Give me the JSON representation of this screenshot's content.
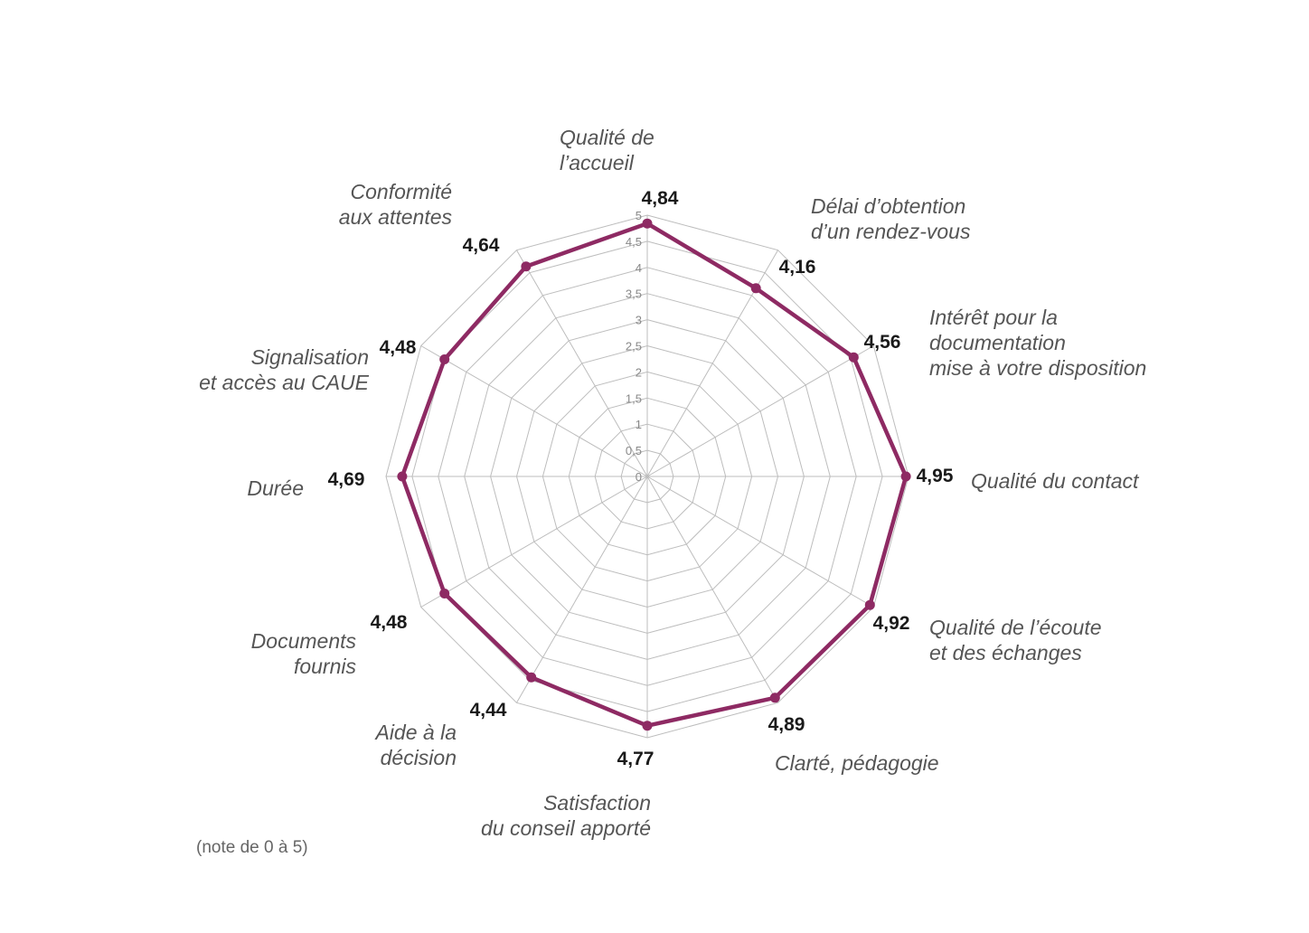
{
  "chart_data": {
    "type": "radar",
    "rlim": [
      0,
      5
    ],
    "ticks": [
      "0",
      "0,5",
      "1",
      "1,5",
      "2",
      "2,5",
      "3",
      "3,5",
      "4",
      "4,5",
      "5"
    ],
    "grid": true,
    "series": [
      {
        "color": "#8e2a63",
        "points": [
          {
            "label": [
              "Qualité de",
              "l’accueil"
            ],
            "value": 4.84,
            "value_label": "4,84"
          },
          {
            "label": [
              "Délai d’obtention",
              "d’un rendez-vous"
            ],
            "value": 4.16,
            "value_label": "4,16"
          },
          {
            "label": [
              "Intérêt pour la",
              "documentation",
              "mise à votre disposition"
            ],
            "value": 4.56,
            "value_label": "4,56"
          },
          {
            "label": [
              "Qualité du contact"
            ],
            "value": 4.95,
            "value_label": "4,95"
          },
          {
            "label": [
              "Qualité de l’écoute",
              "et des échanges"
            ],
            "value": 4.92,
            "value_label": "4,92"
          },
          {
            "label": [
              "Clarté, pédagogie"
            ],
            "value": 4.89,
            "value_label": "4,89"
          },
          {
            "label": [
              "Satisfaction",
              "du conseil apporté"
            ],
            "value": 4.77,
            "value_label": "4,77"
          },
          {
            "label": [
              "Aide à la",
              "décision"
            ],
            "value": 4.44,
            "value_label": "4,44"
          },
          {
            "label": [
              "Documents",
              "fournis"
            ],
            "value": 4.48,
            "value_label": "4,48"
          },
          {
            "label": [
              "Durée"
            ],
            "value": 4.69,
            "value_label": "4,69"
          },
          {
            "label": [
              "Signalisation",
              "et accès au CAUE"
            ],
            "value": 4.48,
            "value_label": "4,48"
          },
          {
            "label": [
              "Conformité",
              "aux attentes"
            ],
            "value": 4.64,
            "value_label": "4,64"
          }
        ]
      }
    ]
  },
  "note": "(note de 0 à 5)"
}
